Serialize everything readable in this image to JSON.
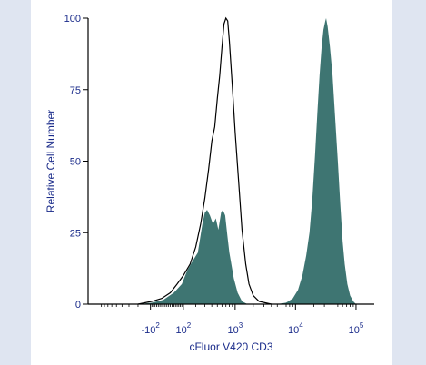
{
  "chart_data": {
    "type": "area",
    "title": "",
    "xlabel": "cFluor V420 CD3",
    "ylabel": "Relative Cell Number",
    "x_scale": "biexponential",
    "x_ticks": [
      {
        "value": -100,
        "parts": [
          "-10",
          "2"
        ]
      },
      {
        "value": 100,
        "parts": [
          "10",
          "2"
        ]
      },
      {
        "value": 1000,
        "parts": [
          "10",
          "3"
        ]
      },
      {
        "value": 10000,
        "parts": [
          "10",
          "4"
        ]
      },
      {
        "value": 100000,
        "parts": [
          "10",
          "5"
        ]
      }
    ],
    "y_ticks": [
      "0",
      "25",
      "50",
      "75",
      "100"
    ],
    "ylim": [
      0,
      100
    ],
    "grid": false,
    "series": [
      {
        "style": "outline",
        "color": "#000000",
        "points": [
          [
            -200,
            0
          ],
          [
            -90,
            1
          ],
          [
            -30,
            2
          ],
          [
            20,
            4
          ],
          [
            60,
            7
          ],
          [
            100,
            10
          ],
          [
            150,
            14
          ],
          [
            200,
            20
          ],
          [
            250,
            28
          ],
          [
            300,
            37
          ],
          [
            350,
            47
          ],
          [
            400,
            57
          ],
          [
            450,
            62
          ],
          [
            500,
            72
          ],
          [
            550,
            80
          ],
          [
            600,
            90
          ],
          [
            650,
            98
          ],
          [
            700,
            100
          ],
          [
            750,
            99
          ],
          [
            800,
            92
          ],
          [
            900,
            76
          ],
          [
            1000,
            60
          ],
          [
            1150,
            42
          ],
          [
            1300,
            26
          ],
          [
            1500,
            14
          ],
          [
            1700,
            7
          ],
          [
            2000,
            3
          ],
          [
            2500,
            1
          ],
          [
            4000,
            0
          ]
        ]
      },
      {
        "style": "filled",
        "color": "#3e7572",
        "points": [
          [
            -200,
            0
          ],
          [
            -90,
            0.5
          ],
          [
            -20,
            1.5
          ],
          [
            40,
            4
          ],
          [
            90,
            7
          ],
          [
            130,
            12
          ],
          [
            170,
            15
          ],
          [
            220,
            18
          ],
          [
            270,
            28
          ],
          [
            300,
            32
          ],
          [
            330,
            33
          ],
          [
            370,
            31
          ],
          [
            420,
            28
          ],
          [
            470,
            30
          ],
          [
            520,
            26
          ],
          [
            580,
            32
          ],
          [
            620,
            33
          ],
          [
            680,
            31
          ],
          [
            740,
            24
          ],
          [
            800,
            18
          ],
          [
            950,
            9
          ],
          [
            1100,
            4
          ],
          [
            1300,
            1
          ],
          [
            1600,
            0
          ],
          [
            5000,
            0
          ],
          [
            7000,
            0.5
          ],
          [
            9000,
            2
          ],
          [
            11000,
            5
          ],
          [
            13000,
            10
          ],
          [
            15000,
            17
          ],
          [
            17000,
            25
          ],
          [
            19000,
            37
          ],
          [
            21000,
            52
          ],
          [
            23000,
            67
          ],
          [
            25000,
            80
          ],
          [
            27000,
            90
          ],
          [
            29000,
            96
          ],
          [
            31000,
            99
          ],
          [
            32000,
            100
          ],
          [
            34000,
            97
          ],
          [
            37000,
            90
          ],
          [
            41000,
            80
          ],
          [
            45000,
            66
          ],
          [
            50000,
            50
          ],
          [
            55000,
            35
          ],
          [
            60000,
            22
          ],
          [
            65000,
            14
          ],
          [
            72000,
            7
          ],
          [
            80000,
            3
          ],
          [
            90000,
            1
          ],
          [
            100000,
            0
          ]
        ]
      }
    ]
  }
}
